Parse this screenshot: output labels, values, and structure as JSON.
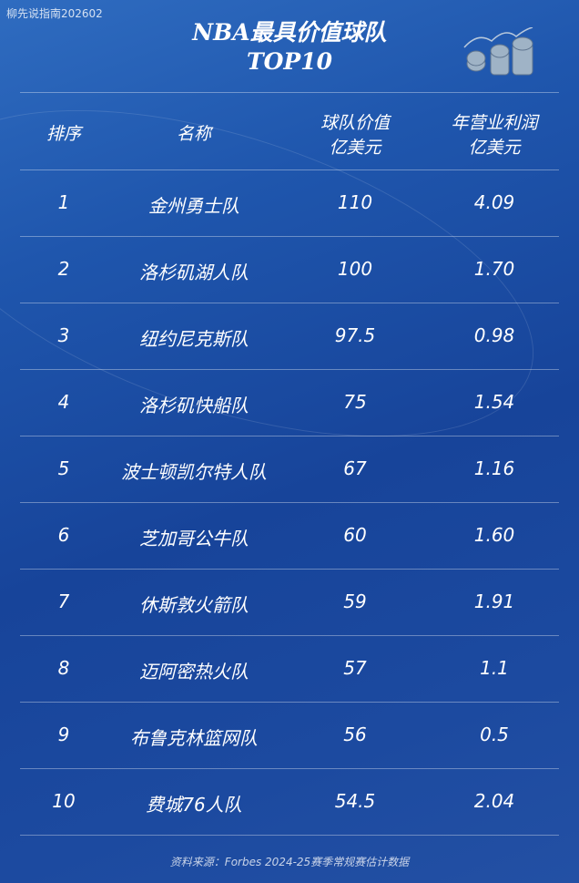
{
  "watermark": "柳先说指南202602",
  "title_line1": "NBA最具价值球队",
  "title_line2": "TOP10",
  "headers": {
    "rank": "排序",
    "name": "名称",
    "value_l1": "球队价值",
    "value_l2": "亿美元",
    "profit_l1": "年营业利润",
    "profit_l2": "亿美元"
  },
  "rows": [
    {
      "rank": "1",
      "name": "金州勇士队",
      "value": "110",
      "profit": "4.09"
    },
    {
      "rank": "2",
      "name": "洛杉矶湖人队",
      "value": "100",
      "profit": "1.70"
    },
    {
      "rank": "3",
      "name": "纽约尼克斯队",
      "value": "97.5",
      "profit": "0.98"
    },
    {
      "rank": "4",
      "name": "洛杉矶快船队",
      "value": "75",
      "profit": "1.54"
    },
    {
      "rank": "5",
      "name": "波士顿凯尔特人队",
      "value": "67",
      "profit": "1.16"
    },
    {
      "rank": "6",
      "name": "芝加哥公牛队",
      "value": "60",
      "profit": "1.60"
    },
    {
      "rank": "7",
      "name": "休斯敦火箭队",
      "value": "59",
      "profit": "1.91"
    },
    {
      "rank": "8",
      "name": "迈阿密热火队",
      "value": "57",
      "profit": "1.1"
    },
    {
      "rank": "9",
      "name": "布鲁克林篮网队",
      "value": "56",
      "profit": "0.5"
    },
    {
      "rank": "10",
      "name": "费城76人队",
      "value": "54.5",
      "profit": "2.04"
    }
  ],
  "source": "资料来源：Forbes 2024-25赛季常规赛估计数据",
  "icon": "coins-stack-icon"
}
